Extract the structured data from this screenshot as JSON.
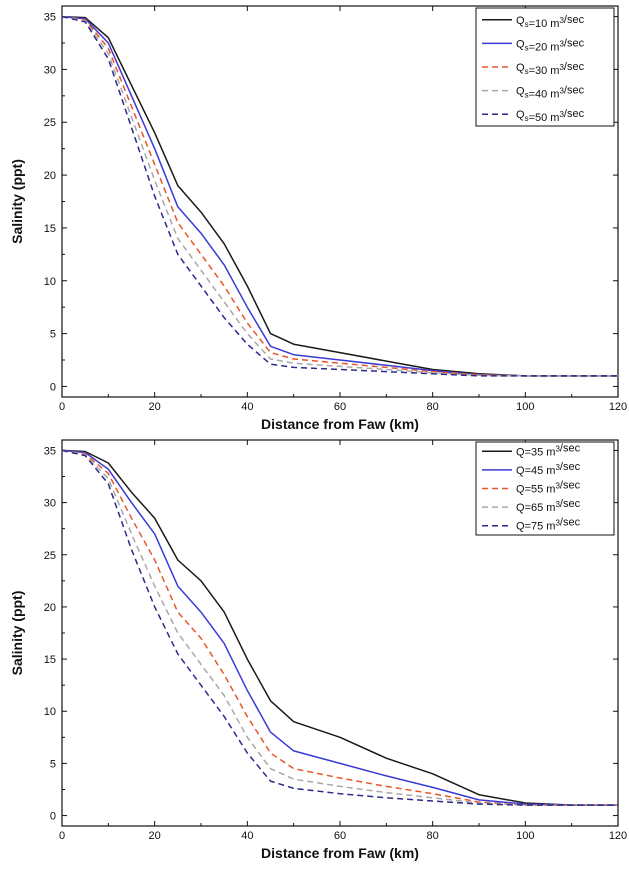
{
  "chart_data": [
    {
      "type": "line",
      "xlabel": "Distance from Faw (km)",
      "ylabel": "Salinity (ppt)",
      "xlim": [
        0,
        120
      ],
      "ylim": [
        -1,
        36
      ],
      "xticks": [
        0,
        20,
        40,
        60,
        80,
        100,
        120
      ],
      "yticks": [
        0,
        5,
        10,
        15,
        20,
        25,
        30,
        35
      ],
      "grid": false,
      "legend_position": "top-right",
      "series": [
        {
          "name": "Qs=10 m3/sec",
          "label_base": "Q",
          "label_sub": "s",
          "label_rest": "=10 m",
          "label_sup": "3",
          "label_tail": "/sec",
          "color": "#1a1a1a",
          "dash": "solid",
          "x": [
            0,
            5,
            10,
            15,
            20,
            25,
            30,
            35,
            40,
            45,
            50,
            60,
            70,
            80,
            90,
            100,
            110,
            120
          ],
          "y": [
            35,
            34.9,
            33,
            28.5,
            24,
            19,
            16.5,
            13.5,
            9.5,
            5,
            4,
            3.2,
            2.4,
            1.6,
            1.2,
            1.0,
            1.0,
            1.0
          ]
        },
        {
          "name": "Qs=20 m3/sec",
          "label_base": "Q",
          "label_sub": "s",
          "label_rest": "=20 m",
          "label_sup": "3",
          "label_tail": "/sec",
          "color": "#3a3ad6",
          "dash": "solid",
          "x": [
            0,
            5,
            10,
            15,
            20,
            25,
            30,
            35,
            40,
            45,
            50,
            60,
            70,
            80,
            90,
            100,
            110,
            120
          ],
          "y": [
            35,
            34.8,
            32.5,
            27.5,
            22.5,
            17,
            14.5,
            11.5,
            7.5,
            3.8,
            3.0,
            2.5,
            2.0,
            1.5,
            1.1,
            1.0,
            1.0,
            1.0
          ]
        },
        {
          "name": "Qs=30 m3/sec",
          "label_base": "Q",
          "label_sub": "s",
          "label_rest": "=30 m",
          "label_sup": "3",
          "label_tail": "/sec",
          "color": "#e8572a",
          "dash": "dashed",
          "x": [
            0,
            5,
            10,
            15,
            20,
            25,
            30,
            35,
            40,
            45,
            50,
            60,
            70,
            80,
            90,
            100,
            110,
            120
          ],
          "y": [
            35,
            34.7,
            32,
            26.5,
            21,
            15.5,
            12.5,
            9.5,
            6,
            3.2,
            2.6,
            2.2,
            1.8,
            1.4,
            1.1,
            1.0,
            1.0,
            1.0
          ]
        },
        {
          "name": "Qs=40 m3/sec",
          "label_base": "Q",
          "label_sub": "s",
          "label_rest": "=40 m",
          "label_sup": "3",
          "label_tail": "/sec",
          "color": "#a8a8a8",
          "dash": "dashed",
          "x": [
            0,
            5,
            10,
            15,
            20,
            25,
            30,
            35,
            40,
            45,
            50,
            60,
            70,
            80,
            90,
            100,
            110,
            120
          ],
          "y": [
            35,
            34.6,
            31.5,
            25.5,
            19.5,
            14,
            11,
            8,
            5,
            2.6,
            2.2,
            1.9,
            1.6,
            1.3,
            1.05,
            1.0,
            1.0,
            1.0
          ]
        },
        {
          "name": "Qs=50 m3/sec",
          "label_base": "Q",
          "label_sub": "s",
          "label_rest": "=50 m",
          "label_sup": "3",
          "label_tail": "/sec",
          "color": "#2a2a8a",
          "dash": "dashed",
          "x": [
            0,
            5,
            10,
            15,
            20,
            25,
            30,
            35,
            40,
            45,
            50,
            60,
            70,
            80,
            90,
            100,
            110,
            120
          ],
          "y": [
            35,
            34.5,
            31,
            24.5,
            18,
            12.5,
            9.5,
            6.5,
            4,
            2.1,
            1.8,
            1.6,
            1.4,
            1.2,
            1.0,
            1.0,
            1.0,
            1.0
          ]
        }
      ]
    },
    {
      "type": "line",
      "xlabel": "Distance from Faw (km)",
      "ylabel": "Salinity (ppt)",
      "xlim": [
        0,
        120
      ],
      "ylim": [
        -1,
        36
      ],
      "xticks": [
        0,
        20,
        40,
        60,
        80,
        100,
        120
      ],
      "yticks": [
        0,
        5,
        10,
        15,
        20,
        25,
        30,
        35
      ],
      "grid": false,
      "legend_position": "top-right",
      "series": [
        {
          "name": "Q=35 m3/sec",
          "label_base": "Q",
          "label_sub": "",
          "label_rest": "=35 m",
          "label_sup": "3",
          "label_tail": "/sec",
          "color": "#1a1a1a",
          "dash": "solid",
          "x": [
            0,
            5,
            10,
            15,
            20,
            25,
            30,
            35,
            40,
            45,
            50,
            60,
            70,
            80,
            90,
            100,
            110,
            120
          ],
          "y": [
            35,
            34.9,
            33.8,
            31,
            28.5,
            24.5,
            22.5,
            19.5,
            15,
            11,
            9,
            7.5,
            5.5,
            4,
            2,
            1.2,
            1.0,
            1.0
          ]
        },
        {
          "name": "Q=45 m3/sec",
          "label_base": "Q",
          "label_sub": "",
          "label_rest": "=45 m",
          "label_sup": "3",
          "label_tail": "/sec",
          "color": "#3a3ad6",
          "dash": "solid",
          "x": [
            0,
            5,
            10,
            15,
            20,
            25,
            30,
            35,
            40,
            45,
            50,
            60,
            70,
            80,
            90,
            100,
            110,
            120
          ],
          "y": [
            35,
            34.8,
            33.2,
            30,
            27,
            22,
            19.5,
            16.5,
            12,
            8,
            6.2,
            5,
            3.8,
            2.7,
            1.5,
            1.1,
            1.0,
            1.0
          ]
        },
        {
          "name": "Q=55 m3/sec",
          "label_base": "Q",
          "label_sub": "",
          "label_rest": "=55 m",
          "label_sup": "3",
          "label_tail": "/sec",
          "color": "#e8572a",
          "dash": "dashed",
          "x": [
            0,
            5,
            10,
            15,
            20,
            25,
            30,
            35,
            40,
            45,
            50,
            60,
            70,
            80,
            90,
            100,
            110,
            120
          ],
          "y": [
            35,
            34.7,
            32.8,
            28.5,
            24.5,
            19.5,
            17,
            13.5,
            9.5,
            6,
            4.5,
            3.6,
            2.8,
            2.1,
            1.3,
            1.0,
            1.0,
            1.0
          ]
        },
        {
          "name": "Q=65 m3/sec",
          "label_base": "Q",
          "label_sub": "",
          "label_rest": "=65 m",
          "label_sup": "3",
          "label_tail": "/sec",
          "color": "#a8a8a8",
          "dash": "dashed",
          "x": [
            0,
            5,
            10,
            15,
            20,
            25,
            30,
            35,
            40,
            45,
            50,
            60,
            70,
            80,
            90,
            100,
            110,
            120
          ],
          "y": [
            35,
            34.6,
            32.3,
            27,
            22,
            17.5,
            14.5,
            11.5,
            7.5,
            4.5,
            3.5,
            2.8,
            2.2,
            1.7,
            1.2,
            1.0,
            1.0,
            1.0
          ]
        },
        {
          "name": "Q=75 m3/sec",
          "label_base": "Q",
          "label_sub": "",
          "label_rest": "=75 m",
          "label_sup": "3",
          "label_tail": "/sec",
          "color": "#2a2a8a",
          "dash": "dashed",
          "x": [
            0,
            5,
            10,
            15,
            20,
            25,
            30,
            35,
            40,
            45,
            50,
            60,
            70,
            80,
            90,
            100,
            110,
            120
          ],
          "y": [
            35,
            34.5,
            31.8,
            25.5,
            20,
            15.5,
            12.5,
            9.5,
            6,
            3.3,
            2.6,
            2.1,
            1.7,
            1.4,
            1.1,
            1.0,
            1.0,
            1.0
          ]
        }
      ]
    }
  ]
}
